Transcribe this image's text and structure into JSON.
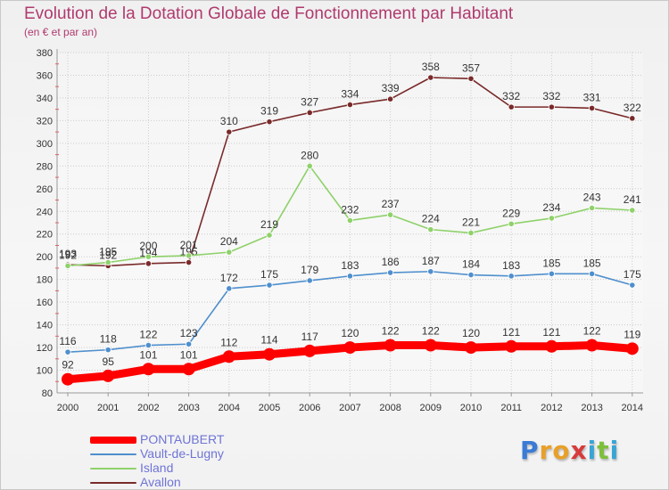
{
  "title": "Evolution de la Dotation Globale de Fonctionnement par Habitant",
  "subtitle": "(en € et par an)",
  "logo_text": "Proxiti",
  "chart_data": {
    "type": "line",
    "categories": [
      "2000",
      "2001",
      "2002",
      "2003",
      "2004",
      "2005",
      "2006",
      "2007",
      "2008",
      "2009",
      "2010",
      "2011",
      "2012",
      "2013",
      "2014"
    ],
    "ylim": [
      80,
      380
    ],
    "yticks": [
      80,
      100,
      120,
      140,
      160,
      180,
      200,
      220,
      240,
      260,
      280,
      300,
      320,
      340,
      360,
      380
    ],
    "grid": true,
    "legend_position": "bottom-left",
    "series": [
      {
        "name": "PONTAUBERT",
        "color": "#ff0000",
        "values": [
          92,
          95,
          101,
          101,
          112,
          114,
          117,
          120,
          122,
          122,
          120,
          121,
          121,
          122,
          119
        ]
      },
      {
        "name": "Vault-de-Lugny",
        "color": "#4f8fcd",
        "values": [
          116,
          118,
          122,
          123,
          172,
          175,
          179,
          183,
          186,
          187,
          184,
          183,
          185,
          185,
          175
        ]
      },
      {
        "name": "Island",
        "color": "#8fd16a",
        "values": [
          192,
          195,
          200,
          201,
          204,
          219,
          280,
          232,
          237,
          224,
          221,
          229,
          234,
          243,
          241
        ]
      },
      {
        "name": "Avallon",
        "color": "#7a2a2a",
        "values": [
          193,
          192,
          194,
          195,
          310,
          319,
          327,
          334,
          339,
          358,
          357,
          332,
          332,
          331,
          322
        ]
      }
    ]
  },
  "colors": {
    "title": "#b03a6e",
    "legend_text": "#6f74d6",
    "axis": "#9a9a9a",
    "grid": "#cccccc"
  }
}
